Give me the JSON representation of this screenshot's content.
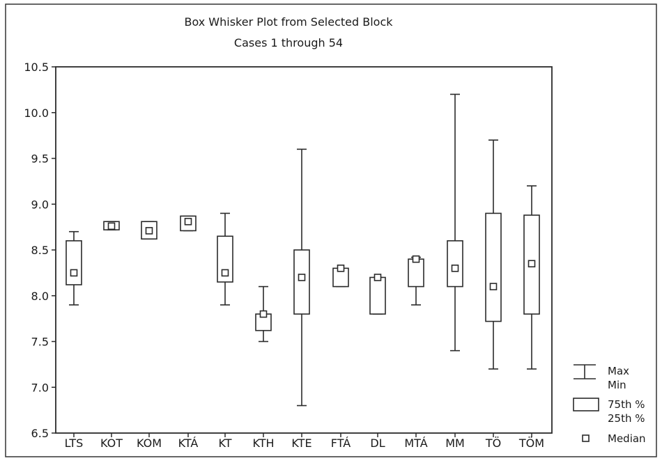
{
  "chart_data": {
    "type": "box",
    "title": "Box Whisker Plot from Selected Block",
    "subtitle": "Cases 1 through 54",
    "ylim": [
      6.5,
      10.5
    ],
    "yticks": [
      "10.5",
      "10.0",
      "9.5",
      "9.0",
      "8.5",
      "8.0",
      "7.5",
      "7.0",
      "6.5"
    ],
    "categories": [
      "LTS",
      "KOT",
      "KOM",
      "KTÁ",
      "KT",
      "KTH",
      "KTE",
      "FTÁ",
      "DL",
      "MTÁ",
      "MM",
      "TÖ",
      "TÖM"
    ],
    "series": [
      {
        "category": "LTS",
        "min": 7.9,
        "q1": 8.12,
        "median": 8.25,
        "q3": 8.6,
        "max": 8.7
      },
      {
        "category": "KOT",
        "min": 8.72,
        "q1": 8.72,
        "median": 8.76,
        "q3": 8.81,
        "max": 8.81
      },
      {
        "category": "KOM",
        "min": 8.62,
        "q1": 8.62,
        "median": 8.71,
        "q3": 8.81,
        "max": 8.81
      },
      {
        "category": "KTÁ",
        "min": 8.71,
        "q1": 8.71,
        "median": 8.81,
        "q3": 8.87,
        "max": 8.87
      },
      {
        "category": "KT",
        "min": 7.9,
        "q1": 8.15,
        "median": 8.25,
        "q3": 8.65,
        "max": 8.9
      },
      {
        "category": "KTH",
        "min": 7.5,
        "q1": 7.62,
        "median": 7.8,
        "q3": 7.8,
        "max": 8.1
      },
      {
        "category": "KTE",
        "min": 6.8,
        "q1": 7.8,
        "median": 8.2,
        "q3": 8.5,
        "max": 9.6
      },
      {
        "category": "FTÁ",
        "min": 8.1,
        "q1": 8.1,
        "median": 8.3,
        "q3": 8.3,
        "max": 8.3
      },
      {
        "category": "DL",
        "min": 7.8,
        "q1": 7.8,
        "median": 8.2,
        "q3": 8.2,
        "max": 8.2
      },
      {
        "category": "MTÁ",
        "min": 7.9,
        "q1": 8.1,
        "median": 8.4,
        "q3": 8.4,
        "max": 8.42
      },
      {
        "category": "MM",
        "min": 7.4,
        "q1": 8.1,
        "median": 8.3,
        "q3": 8.6,
        "max": 10.2
      },
      {
        "category": "TÖ",
        "min": 7.2,
        "q1": 7.72,
        "median": 8.1,
        "q3": 8.9,
        "max": 9.7
      },
      {
        "category": "TÖM",
        "min": 7.2,
        "q1": 7.8,
        "median": 8.35,
        "q3": 8.88,
        "max": 9.2
      }
    ],
    "legend": {
      "whisker_top": "Max",
      "whisker_bottom": "Min",
      "box_top": "75th %",
      "box_bottom": "25th %",
      "median": "Median",
      "placement": "right"
    },
    "grid": false
  }
}
